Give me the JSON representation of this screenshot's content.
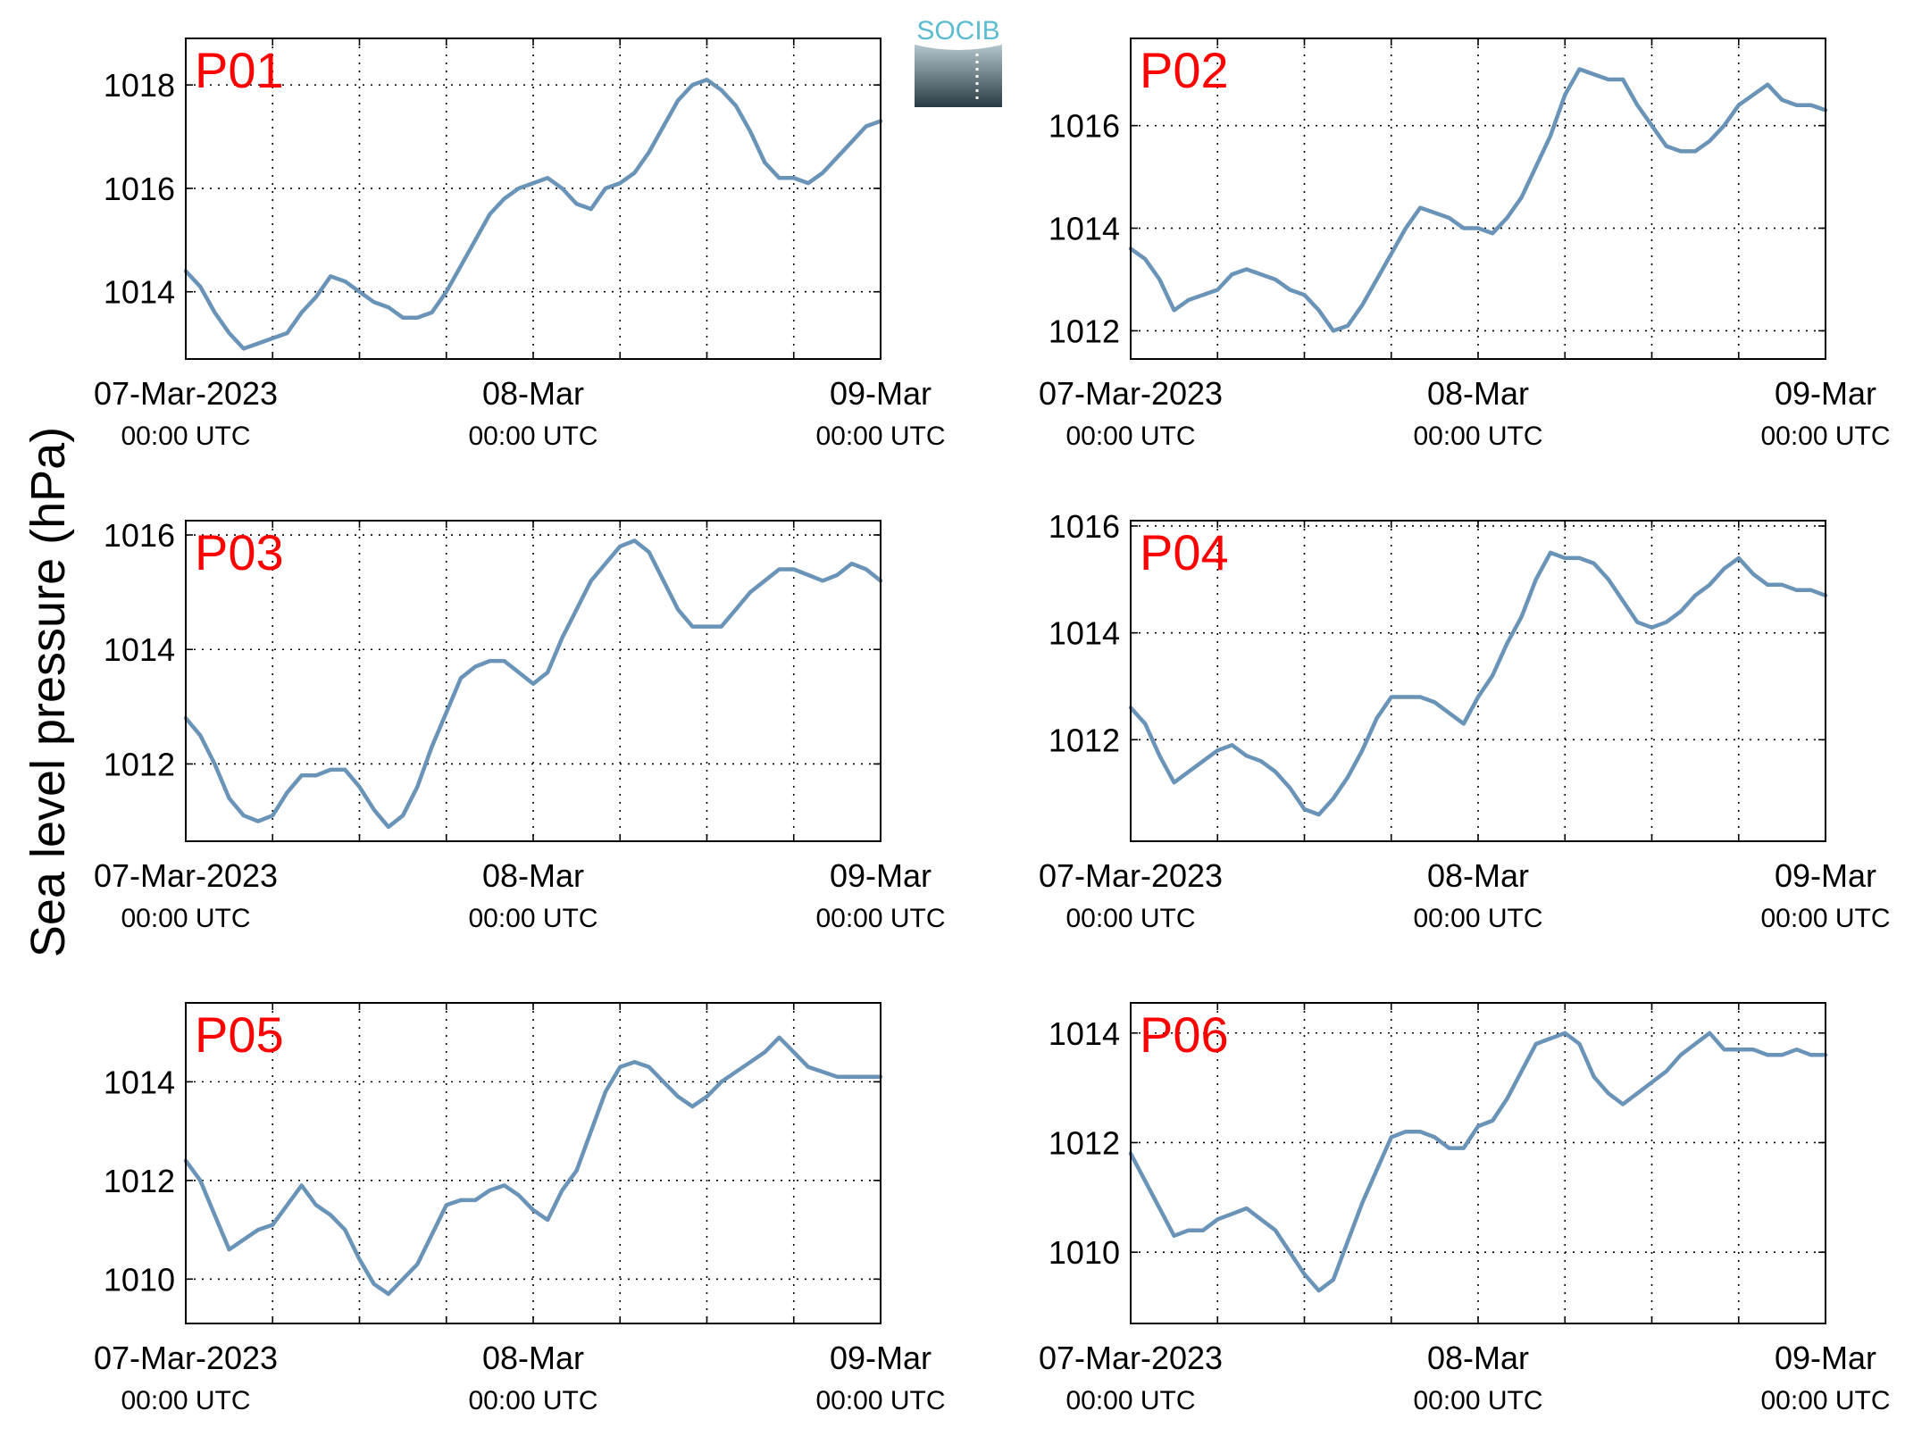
{
  "figure": {
    "ylabel": "Sea level pressure (hPa)",
    "logo_text": "SOCIB",
    "colors": {
      "line": "#6a93b8",
      "panel_label": "#ff0000",
      "axis": "#000000",
      "grid": "#000000",
      "logo_text": "#5bbcd0",
      "logo_top": "#b3c6cc",
      "logo_bottom": "#2a3a44"
    }
  },
  "chart_data": [
    {
      "type": "line",
      "label": "P01",
      "x_range": [
        "07-Mar-2023 00:00 UTC",
        "09-Mar-2023 00:00 UTC"
      ],
      "xticks": [
        {
          "date": "07-Mar-2023",
          "time": "00:00 UTC"
        },
        {
          "date": "08-Mar",
          "time": "00:00 UTC"
        },
        {
          "date": "09-Mar",
          "time": "00:00 UTC"
        }
      ],
      "yticks": [
        1014,
        1016,
        1018
      ],
      "ylim": [
        1012.7,
        1018.9
      ],
      "grid": true,
      "x_hours": [
        0,
        1,
        2,
        3,
        4,
        5,
        6,
        7,
        8,
        9,
        10,
        11,
        12,
        13,
        14,
        15,
        16,
        17,
        18,
        19,
        20,
        21,
        22,
        23,
        24,
        25,
        26,
        27,
        28,
        29,
        30,
        31,
        32,
        33,
        34,
        35,
        36,
        37,
        38,
        39,
        40,
        41,
        42,
        43,
        44,
        45,
        46,
        47,
        48
      ],
      "values": [
        1014.4,
        1014.1,
        1013.6,
        1013.2,
        1012.9,
        1013.0,
        1013.1,
        1013.2,
        1013.6,
        1013.9,
        1014.3,
        1014.2,
        1014.0,
        1013.8,
        1013.7,
        1013.5,
        1013.5,
        1013.6,
        1014.0,
        1014.5,
        1015.0,
        1015.5,
        1015.8,
        1016.0,
        1016.1,
        1016.2,
        1016.0,
        1015.7,
        1015.6,
        1016.0,
        1016.1,
        1016.3,
        1016.7,
        1017.2,
        1017.7,
        1018.0,
        1018.1,
        1017.9,
        1017.6,
        1017.1,
        1016.5,
        1016.2,
        1016.2,
        1016.1,
        1016.3,
        1016.6,
        1016.9,
        1017.2,
        1017.3
      ]
    },
    {
      "type": "line",
      "label": "P02",
      "x_range": [
        "07-Mar-2023 00:00 UTC",
        "09-Mar-2023 00:00 UTC"
      ],
      "xticks": [
        {
          "date": "07-Mar-2023",
          "time": "00:00 UTC"
        },
        {
          "date": "08-Mar",
          "time": "00:00 UTC"
        },
        {
          "date": "09-Mar",
          "time": "00:00 UTC"
        }
      ],
      "yticks": [
        1012,
        1014,
        1016
      ],
      "ylim": [
        1011.45,
        1017.7
      ],
      "grid": true,
      "x_hours": [
        0,
        1,
        2,
        3,
        4,
        5,
        6,
        7,
        8,
        9,
        10,
        11,
        12,
        13,
        14,
        15,
        16,
        17,
        18,
        19,
        20,
        21,
        22,
        23,
        24,
        25,
        26,
        27,
        28,
        29,
        30,
        31,
        32,
        33,
        34,
        35,
        36,
        37,
        38,
        39,
        40,
        41,
        42,
        43,
        44,
        45,
        46,
        47,
        48
      ],
      "values": [
        1013.6,
        1013.4,
        1013.0,
        1012.4,
        1012.6,
        1012.7,
        1012.8,
        1013.1,
        1013.2,
        1013.1,
        1013.0,
        1012.8,
        1012.7,
        1012.4,
        1012.0,
        1012.1,
        1012.5,
        1013.0,
        1013.5,
        1014.0,
        1014.4,
        1014.3,
        1014.2,
        1014.0,
        1014.0,
        1013.9,
        1014.2,
        1014.6,
        1015.2,
        1015.8,
        1016.6,
        1017.1,
        1017.0,
        1016.9,
        1016.9,
        1016.4,
        1016.0,
        1015.6,
        1015.5,
        1015.5,
        1015.7,
        1016.0,
        1016.4,
        1016.6,
        1016.8,
        1016.5,
        1016.4,
        1016.4,
        1016.3
      ]
    },
    {
      "type": "line",
      "label": "P03",
      "x_range": [
        "07-Mar-2023 00:00 UTC",
        "09-Mar-2023 00:00 UTC"
      ],
      "xticks": [
        {
          "date": "07-Mar-2023",
          "time": "00:00 UTC"
        },
        {
          "date": "08-Mar",
          "time": "00:00 UTC"
        },
        {
          "date": "09-Mar",
          "time": "00:00 UTC"
        }
      ],
      "yticks": [
        1012,
        1014,
        1016
      ],
      "ylim": [
        1010.65,
        1016.25
      ],
      "grid": true,
      "x_hours": [
        0,
        1,
        2,
        3,
        4,
        5,
        6,
        7,
        8,
        9,
        10,
        11,
        12,
        13,
        14,
        15,
        16,
        17,
        18,
        19,
        20,
        21,
        22,
        23,
        24,
        25,
        26,
        27,
        28,
        29,
        30,
        31,
        32,
        33,
        34,
        35,
        36,
        37,
        38,
        39,
        40,
        41,
        42,
        43,
        44,
        45,
        46,
        47,
        48
      ],
      "values": [
        1012.8,
        1012.5,
        1012.0,
        1011.4,
        1011.1,
        1011.0,
        1011.1,
        1011.5,
        1011.8,
        1011.8,
        1011.9,
        1011.9,
        1011.6,
        1011.2,
        1010.9,
        1011.1,
        1011.6,
        1012.3,
        1012.9,
        1013.5,
        1013.7,
        1013.8,
        1013.8,
        1013.6,
        1013.4,
        1013.6,
        1014.2,
        1014.7,
        1015.2,
        1015.5,
        1015.8,
        1015.9,
        1015.7,
        1015.2,
        1014.7,
        1014.4,
        1014.4,
        1014.4,
        1014.7,
        1015.0,
        1015.2,
        1015.4,
        1015.4,
        1015.3,
        1015.2,
        1015.3,
        1015.5,
        1015.4,
        1015.2
      ]
    },
    {
      "type": "line",
      "label": "P04",
      "x_range": [
        "07-Mar-2023 00:00 UTC",
        "09-Mar-2023 00:00 UTC"
      ],
      "xticks": [
        {
          "date": "07-Mar-2023",
          "time": "00:00 UTC"
        },
        {
          "date": "08-Mar",
          "time": "00:00 UTC"
        },
        {
          "date": "09-Mar",
          "time": "00:00 UTC"
        }
      ],
      "yticks": [
        1012,
        1014,
        1016
      ],
      "ylim": [
        1010.1,
        1016.1
      ],
      "grid": true,
      "x_hours": [
        0,
        1,
        2,
        3,
        4,
        5,
        6,
        7,
        8,
        9,
        10,
        11,
        12,
        13,
        14,
        15,
        16,
        17,
        18,
        19,
        20,
        21,
        22,
        23,
        24,
        25,
        26,
        27,
        28,
        29,
        30,
        31,
        32,
        33,
        34,
        35,
        36,
        37,
        38,
        39,
        40,
        41,
        42,
        43,
        44,
        45,
        46,
        47,
        48
      ],
      "values": [
        1012.6,
        1012.3,
        1011.7,
        1011.2,
        1011.4,
        1011.6,
        1011.8,
        1011.9,
        1011.7,
        1011.6,
        1011.4,
        1011.1,
        1010.7,
        1010.6,
        1010.9,
        1011.3,
        1011.8,
        1012.4,
        1012.8,
        1012.8,
        1012.8,
        1012.7,
        1012.5,
        1012.3,
        1012.8,
        1013.2,
        1013.8,
        1014.3,
        1015.0,
        1015.5,
        1015.4,
        1015.4,
        1015.3,
        1015.0,
        1014.6,
        1014.2,
        1014.1,
        1014.2,
        1014.4,
        1014.7,
        1014.9,
        1015.2,
        1015.4,
        1015.1,
        1014.9,
        1014.9,
        1014.8,
        1014.8,
        1014.7
      ]
    },
    {
      "type": "line",
      "label": "P05",
      "x_range": [
        "07-Mar-2023 00:00 UTC",
        "09-Mar-2023 00:00 UTC"
      ],
      "xticks": [
        {
          "date": "07-Mar-2023",
          "time": "00:00 UTC"
        },
        {
          "date": "08-Mar",
          "time": "00:00 UTC"
        },
        {
          "date": "09-Mar",
          "time": "00:00 UTC"
        }
      ],
      "yticks": [
        1010,
        1012,
        1014
      ],
      "ylim": [
        1009.1,
        1015.6
      ],
      "grid": true,
      "x_hours": [
        0,
        1,
        2,
        3,
        4,
        5,
        6,
        7,
        8,
        9,
        10,
        11,
        12,
        13,
        14,
        15,
        16,
        17,
        18,
        19,
        20,
        21,
        22,
        23,
        24,
        25,
        26,
        27,
        28,
        29,
        30,
        31,
        32,
        33,
        34,
        35,
        36,
        37,
        38,
        39,
        40,
        41,
        42,
        43,
        44,
        45,
        46,
        47,
        48
      ],
      "values": [
        1012.4,
        1012.0,
        1011.3,
        1010.6,
        1010.8,
        1011.0,
        1011.1,
        1011.5,
        1011.9,
        1011.5,
        1011.3,
        1011.0,
        1010.4,
        1009.9,
        1009.7,
        1010.0,
        1010.3,
        1010.9,
        1011.5,
        1011.6,
        1011.6,
        1011.8,
        1011.9,
        1011.7,
        1011.4,
        1011.2,
        1011.8,
        1012.2,
        1013.0,
        1013.8,
        1014.3,
        1014.4,
        1014.3,
        1014.0,
        1013.7,
        1013.5,
        1013.7,
        1014.0,
        1014.2,
        1014.4,
        1014.6,
        1014.9,
        1014.6,
        1014.3,
        1014.2,
        1014.1,
        1014.1,
        1014.1,
        1014.1
      ]
    },
    {
      "type": "line",
      "label": "P06",
      "x_range": [
        "07-Mar-2023 00:00 UTC",
        "09-Mar-2023 00:00 UTC"
      ],
      "xticks": [
        {
          "date": "07-Mar-2023",
          "time": "00:00 UTC"
        },
        {
          "date": "08-Mar",
          "time": "00:00 UTC"
        },
        {
          "date": "09-Mar",
          "time": "00:00 UTC"
        }
      ],
      "yticks": [
        1010,
        1012,
        1014
      ],
      "ylim": [
        1008.7,
        1014.55
      ],
      "grid": true,
      "x_hours": [
        0,
        1,
        2,
        3,
        4,
        5,
        6,
        7,
        8,
        9,
        10,
        11,
        12,
        13,
        14,
        15,
        16,
        17,
        18,
        19,
        20,
        21,
        22,
        23,
        24,
        25,
        26,
        27,
        28,
        29,
        30,
        31,
        32,
        33,
        34,
        35,
        36,
        37,
        38,
        39,
        40,
        41,
        42,
        43,
        44,
        45,
        46,
        47,
        48
      ],
      "values": [
        1011.8,
        1011.3,
        1010.8,
        1010.3,
        1010.4,
        1010.4,
        1010.6,
        1010.7,
        1010.8,
        1010.6,
        1010.4,
        1010.0,
        1009.6,
        1009.3,
        1009.5,
        1010.2,
        1010.9,
        1011.5,
        1012.1,
        1012.2,
        1012.2,
        1012.1,
        1011.9,
        1011.9,
        1012.3,
        1012.4,
        1012.8,
        1013.3,
        1013.8,
        1013.9,
        1014.0,
        1013.8,
        1013.2,
        1012.9,
        1012.7,
        1012.9,
        1013.1,
        1013.3,
        1013.6,
        1013.8,
        1014.0,
        1013.7,
        1013.7,
        1013.7,
        1013.6,
        1013.6,
        1013.7,
        1013.6,
        1013.6
      ]
    }
  ]
}
